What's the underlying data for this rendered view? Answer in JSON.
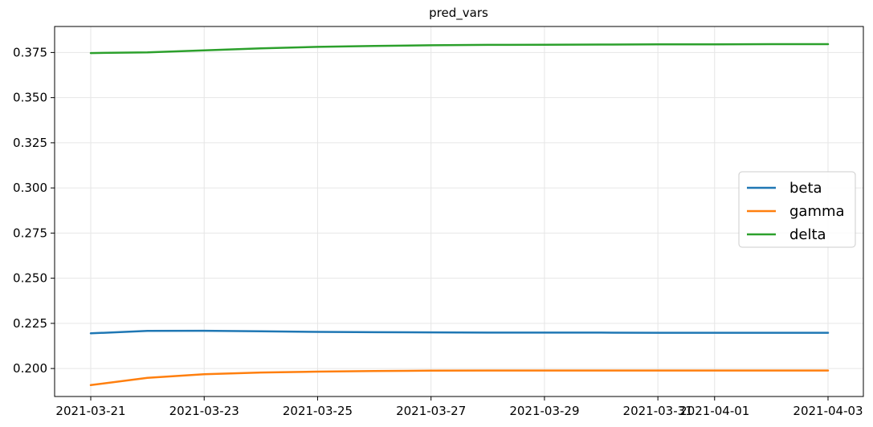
{
  "chart_data": {
    "type": "line",
    "title": "pred_vars",
    "xlabel": "",
    "ylabel": "",
    "x": [
      "2021-03-21",
      "2021-03-22",
      "2021-03-23",
      "2021-03-24",
      "2021-03-25",
      "2021-03-26",
      "2021-03-27",
      "2021-03-28",
      "2021-03-29",
      "2021-03-30",
      "2021-03-31",
      "2021-04-01",
      "2021-04-02",
      "2021-04-03"
    ],
    "x_tick_labels": [
      "2021-03-21",
      "2021-03-23",
      "2021-03-25",
      "2021-03-27",
      "2021-03-29",
      "2021-03-31",
      "2021-04-01",
      "2021-04-03"
    ],
    "y_tick_labels": [
      "0.200",
      "0.225",
      "0.250",
      "0.275",
      "0.300",
      "0.325",
      "0.350",
      "0.375"
    ],
    "ylim": [
      0.1845,
      0.3894
    ],
    "grid": true,
    "legend_position": "right",
    "series": [
      {
        "name": "beta",
        "color": "#1f77b4",
        "values": [
          0.2195,
          0.2208,
          0.2209,
          0.2206,
          0.2203,
          0.2201,
          0.22,
          0.2199,
          0.2199,
          0.2199,
          0.2198,
          0.2198,
          0.2198,
          0.2198
        ]
      },
      {
        "name": "gamma",
        "color": "#ff7f0e",
        "values": [
          0.1908,
          0.1948,
          0.1968,
          0.1978,
          0.1983,
          0.1986,
          0.1988,
          0.1989,
          0.1989,
          0.1989,
          0.1989,
          0.1989,
          0.1989,
          0.1989
        ]
      },
      {
        "name": "delta",
        "color": "#2ca02c",
        "values": [
          0.3747,
          0.3751,
          0.3762,
          0.3773,
          0.3781,
          0.3786,
          0.379,
          0.3792,
          0.3793,
          0.3794,
          0.3795,
          0.3795,
          0.3796,
          0.3796
        ]
      }
    ]
  }
}
